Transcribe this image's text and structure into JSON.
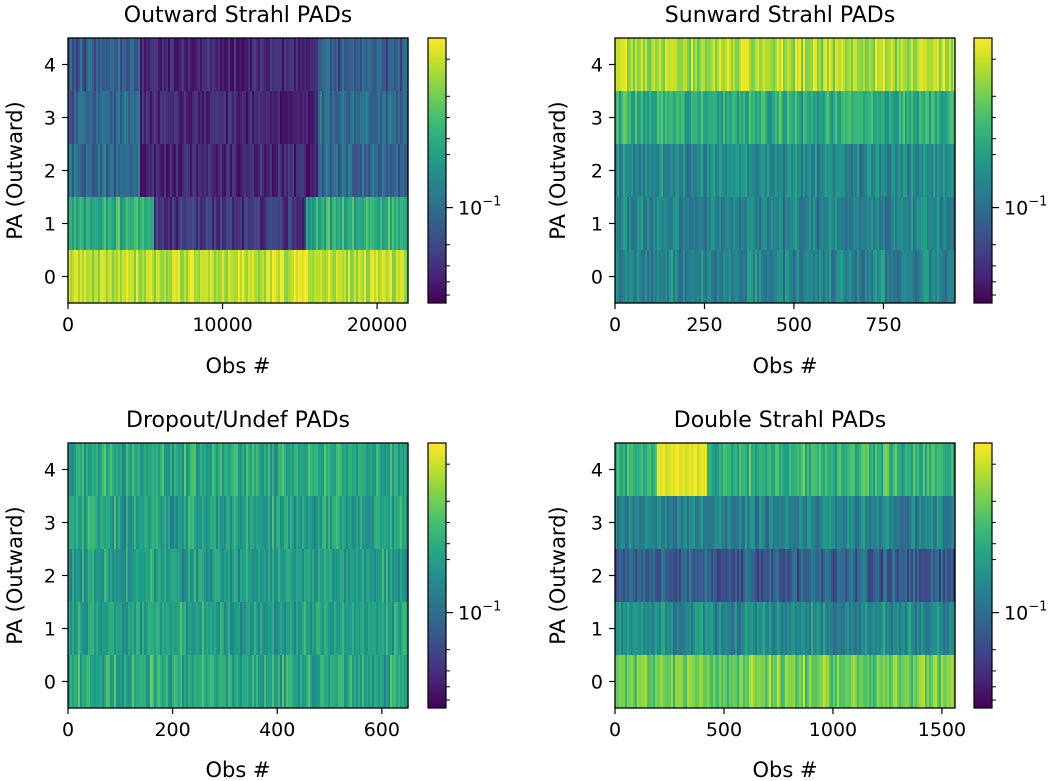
{
  "chart_data": [
    {
      "type": "heatmap",
      "title": "Outward Strahl PADs",
      "xlabel": "Obs #",
      "ylabel": "PA (Outward)",
      "xlim": [
        0,
        22000
      ],
      "ylim": [
        -0.5,
        4.5
      ],
      "xticks": [
        0,
        10000,
        20000
      ],
      "yticks": [
        0,
        1,
        2,
        3,
        4
      ],
      "n_obs": 22000,
      "rows": [
        0,
        1,
        2,
        3,
        4
      ],
      "colormap": "viridis",
      "colorbar": {
        "scale": "log",
        "tick_label": "10^-1"
      },
      "row_levels": [
        0.97,
        0.62,
        0.35,
        0.33,
        0.3
      ],
      "notes": "row 0 bright (yellow) dominant; rows 2-4 dark (purple) for Obs 4500-16000"
    },
    {
      "type": "heatmap",
      "title": "Sunward Strahl PADs",
      "xlabel": "Obs #",
      "ylabel": "PA (Outward)",
      "xlim": [
        0,
        950
      ],
      "ylim": [
        -0.5,
        4.5
      ],
      "xticks": [
        0,
        250,
        500,
        750
      ],
      "yticks": [
        0,
        1,
        2,
        3,
        4
      ],
      "n_obs": 950,
      "rows": [
        0,
        1,
        2,
        3,
        4
      ],
      "colormap": "viridis",
      "colorbar": {
        "scale": "log",
        "tick_label": "10^-1"
      },
      "row_levels": [
        0.45,
        0.45,
        0.48,
        0.62,
        0.88
      ]
    },
    {
      "type": "heatmap",
      "title": "Dropout/Undef PADs",
      "xlabel": "Obs #",
      "ylabel": "PA (Outward)",
      "xlim": [
        0,
        650
      ],
      "ylim": [
        -0.5,
        4.5
      ],
      "xticks": [
        0,
        200,
        400,
        600
      ],
      "yticks": [
        0,
        1,
        2,
        3,
        4
      ],
      "n_obs": 650,
      "rows": [
        0,
        1,
        2,
        3,
        4
      ],
      "colormap": "viridis",
      "colorbar": {
        "scale": "log",
        "tick_label": "10^-1"
      },
      "row_levels": [
        0.6,
        0.57,
        0.55,
        0.57,
        0.6
      ]
    },
    {
      "type": "heatmap",
      "title": "Double Strahl PADs",
      "xlabel": "Obs #",
      "ylabel": "PA (Outward)",
      "xlim": [
        0,
        1560
      ],
      "ylim": [
        -0.5,
        4.5
      ],
      "xticks": [
        0,
        500,
        1000,
        1500
      ],
      "yticks": [
        0,
        1,
        2,
        3,
        4
      ],
      "n_obs": 1560,
      "rows": [
        0,
        1,
        2,
        3,
        4
      ],
      "colormap": "viridis",
      "colorbar": {
        "scale": "log",
        "tick_label": "10^-1"
      },
      "row_levels": [
        0.78,
        0.48,
        0.3,
        0.45,
        0.65
      ]
    }
  ]
}
